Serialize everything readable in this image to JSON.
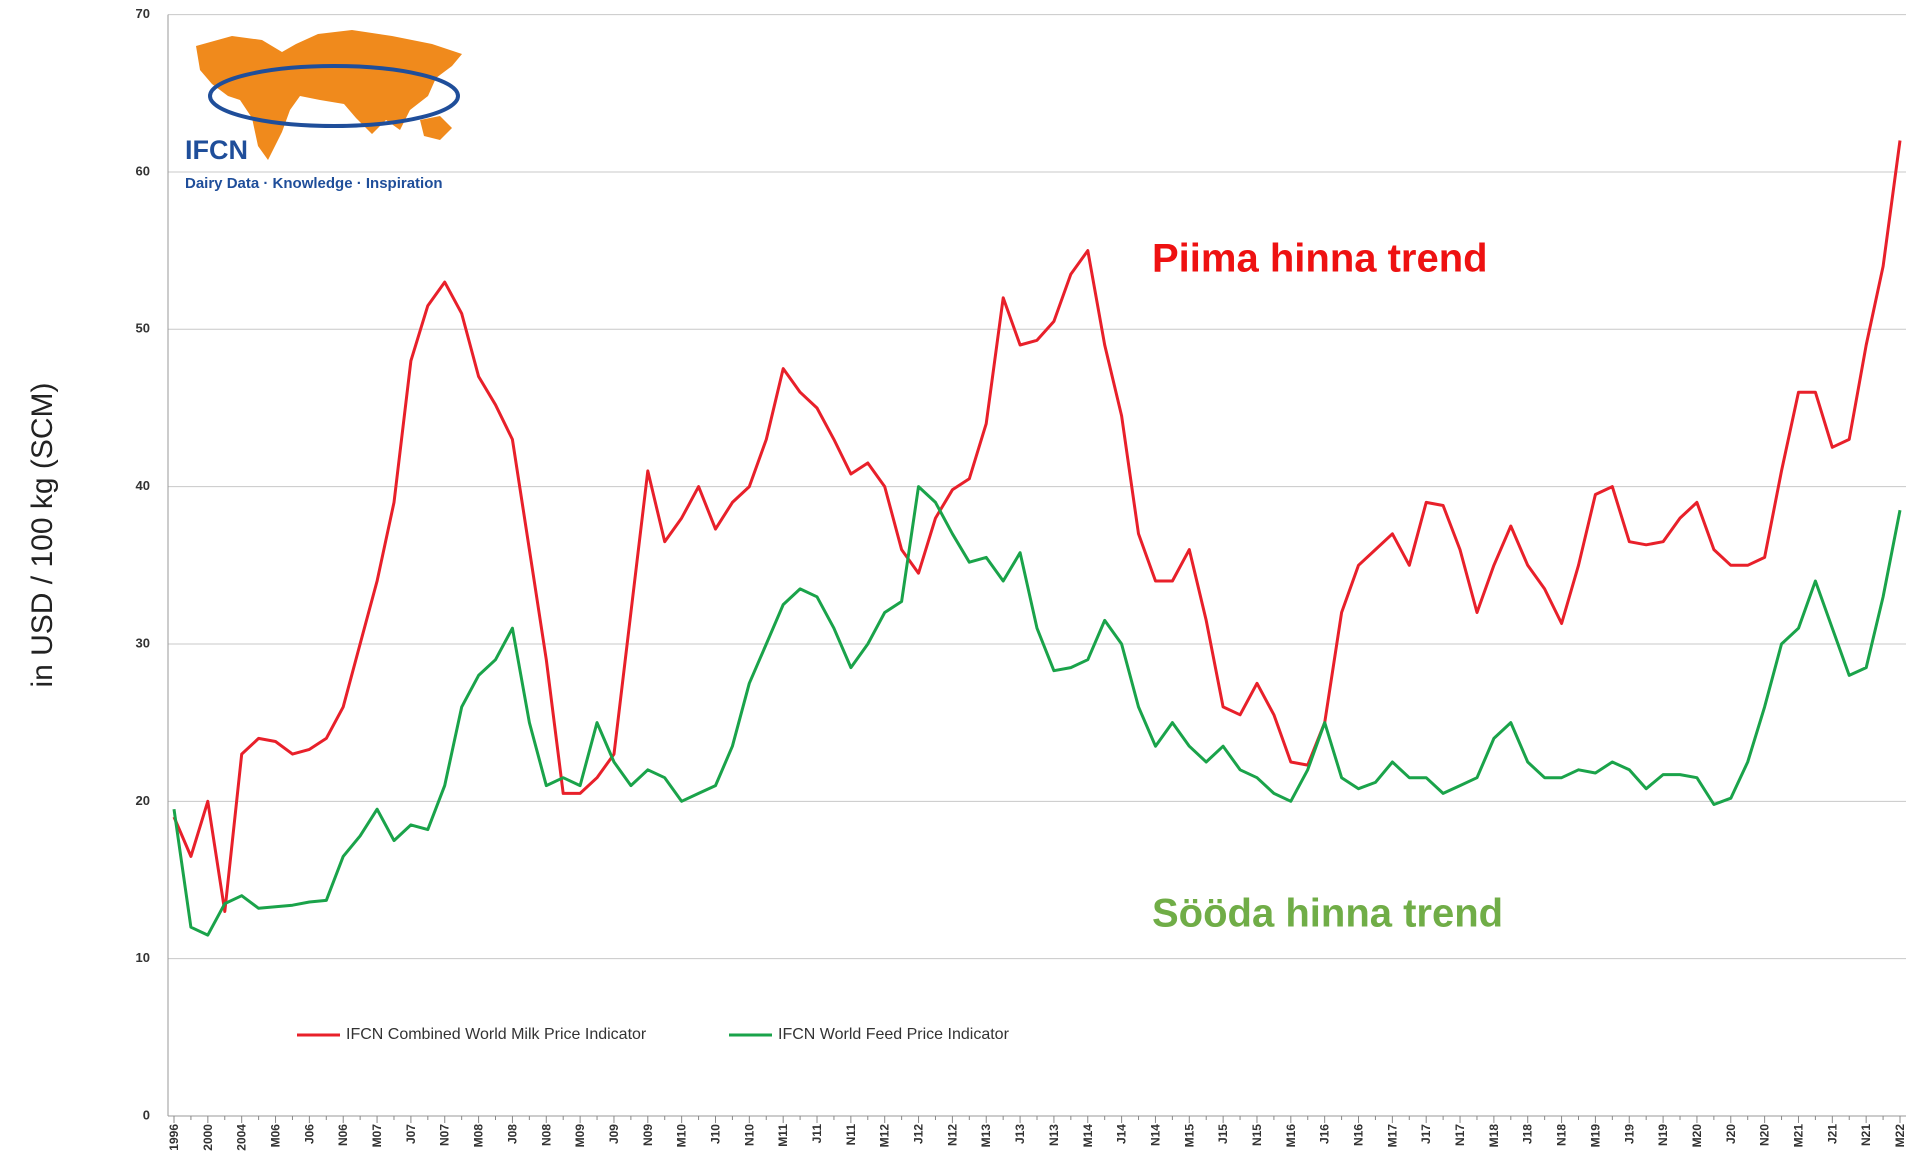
{
  "chart_data": {
    "type": "line",
    "y_label": "in USD / 100 kg (SCM)",
    "logo": {
      "title": "IFCN",
      "tagline": "Dairy Data · Knowledge · Inspiration"
    },
    "annotations": [
      {
        "text": "Piima hinna trend",
        "color": "#ee1111"
      },
      {
        "text": "Sööda hinna trend",
        "color": "#70ad47"
      }
    ],
    "categories": [
      "1996",
      null,
      "2000",
      null,
      "2004",
      null,
      "M06",
      null,
      "J06",
      null,
      "N06",
      null,
      "M07",
      null,
      "J07",
      null,
      "N07",
      null,
      "M08",
      null,
      "J08",
      null,
      "N08",
      null,
      "M09",
      null,
      "J09",
      null,
      "N09",
      null,
      "M10",
      null,
      "J10",
      null,
      "N10",
      null,
      "M11",
      null,
      "J11",
      null,
      "N11",
      null,
      "M12",
      null,
      "J12",
      null,
      "N12",
      null,
      "M13",
      null,
      "J13",
      null,
      "N13",
      null,
      "M14",
      null,
      "J14",
      null,
      "N14",
      null,
      "M15",
      null,
      "J15",
      null,
      "N15",
      null,
      "M16",
      null,
      "J16",
      null,
      "N16",
      null,
      "M17",
      null,
      "J17",
      null,
      "N17",
      null,
      "M18",
      null,
      "J18",
      null,
      "N18",
      null,
      "M19",
      null,
      "J19",
      null,
      "N19",
      null,
      "M20",
      null,
      "J20",
      null,
      "N20",
      null,
      "M21",
      null,
      "J21",
      null,
      "N21",
      null,
      "M22"
    ],
    "series": [
      {
        "name": "IFCN Combined World Milk Price Indicator",
        "color": "#e8202a",
        "values": [
          19,
          16.5,
          20,
          13,
          23,
          24,
          23.8,
          23,
          23.3,
          24,
          26,
          30,
          34,
          39,
          48,
          51.5,
          53,
          51,
          47,
          45.2,
          43,
          36,
          29,
          20.5,
          20.5,
          21.5,
          23,
          32,
          41,
          36.5,
          38,
          40,
          37.3,
          39,
          40,
          43,
          47.5,
          46,
          45,
          43,
          40.8,
          41.5,
          40,
          36,
          34.5,
          38,
          39.8,
          40.5,
          44,
          52,
          49,
          49.3,
          50.5,
          53.5,
          55,
          49,
          44.5,
          37,
          34,
          34,
          36,
          31.5,
          26,
          25.5,
          27.5,
          25.5,
          22.5,
          22.3,
          25,
          32,
          35,
          36,
          37,
          35,
          39,
          38.8,
          36,
          32,
          35,
          37.5,
          35,
          33.5,
          31.3,
          35,
          39.5,
          40,
          36.5,
          36.3,
          36.5,
          38,
          39,
          36,
          35,
          35,
          35.5,
          41,
          46,
          46,
          42.5,
          43,
          49,
          54,
          62
        ]
      },
      {
        "name": "IFCN World Feed Price Indicator",
        "color": "#1aa34a",
        "values": [
          19.5,
          12,
          11.5,
          13.5,
          14,
          13.2,
          13.3,
          13.4,
          13.6,
          13.7,
          16.5,
          17.8,
          19.5,
          17.5,
          18.5,
          18.2,
          21,
          26,
          28,
          29,
          31,
          25,
          21,
          21.5,
          21,
          25,
          22.5,
          21,
          22,
          21.5,
          20,
          20.5,
          21,
          23.5,
          27.5,
          30,
          32.5,
          33.5,
          33,
          31,
          28.5,
          30,
          32,
          32.7,
          40,
          39,
          37,
          35.2,
          35.5,
          34,
          35.8,
          31,
          28.3,
          28.5,
          29,
          31.5,
          30,
          26,
          23.5,
          25,
          23.5,
          22.5,
          23.5,
          22,
          21.5,
          20.5,
          20,
          22,
          25,
          21.5,
          20.8,
          21.2,
          22.5,
          21.5,
          21.5,
          20.5,
          21,
          21.5,
          24,
          25,
          22.5,
          21.5,
          21.5,
          22,
          21.8,
          22.5,
          22,
          20.8,
          21.7,
          21.7,
          21.5,
          19.8,
          20.2,
          22.5,
          26,
          30,
          31,
          34,
          31,
          28,
          28.5,
          33,
          38.5
        ]
      }
    ],
    "ylim": [
      0,
      70
    ],
    "yticks": [
      0,
      10,
      20,
      30,
      40,
      50,
      60,
      70
    ],
    "grid": true
  }
}
